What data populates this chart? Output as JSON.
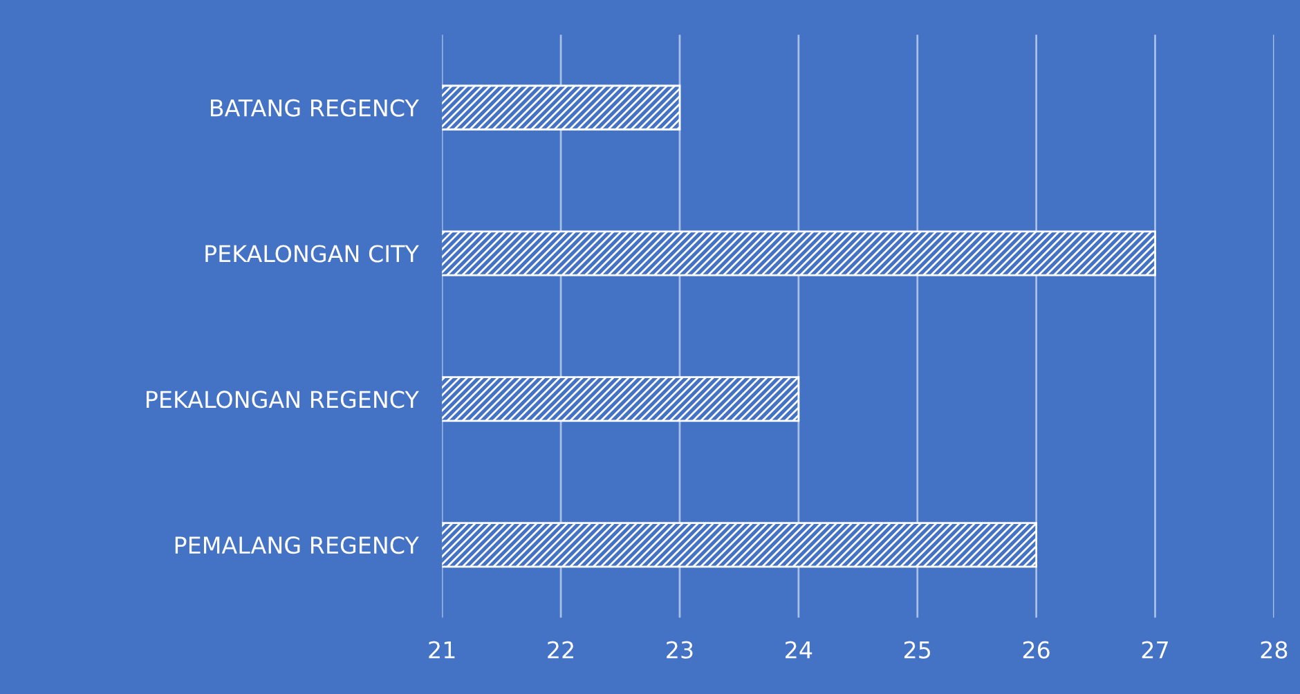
{
  "chart_data": {
    "type": "bar",
    "orientation": "horizontal",
    "categories": [
      "BATANG REGENCY",
      "PEKALONGAN CITY",
      "PEKALONGAN REGENCY",
      "PEMALANG REGENCY"
    ],
    "values": [
      23,
      27,
      24,
      26
    ],
    "color": "#ffffff",
    "xlim": [
      21,
      28
    ],
    "xticks": [
      21,
      22,
      23,
      24,
      25,
      26,
      27,
      28
    ],
    "grid": "x"
  }
}
